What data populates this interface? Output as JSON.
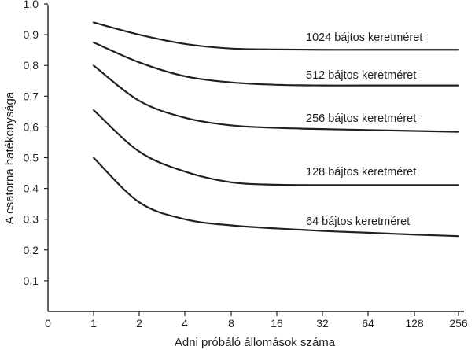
{
  "chart_data": {
    "type": "line",
    "title": "",
    "xlabel": "Adni próbáló állomások száma",
    "ylabel": "A csatorna hatékonysága",
    "x": [
      1,
      2,
      4,
      8,
      16,
      32,
      64,
      128,
      256
    ],
    "x_ticks": [
      "0",
      "1",
      "2",
      "4",
      "8",
      "16",
      "32",
      "64",
      "128",
      "256"
    ],
    "x_scale": "log2",
    "y_ticks": [
      "0,1",
      "0,2",
      "0,3",
      "0,4",
      "0,5",
      "0,6",
      "0,7",
      "0,8",
      "0,9",
      "1,0"
    ],
    "ylim": [
      0,
      1.0
    ],
    "grid": false,
    "series": [
      {
        "name": "1024 bájtos keretméret",
        "values": [
          0.94,
          0.9,
          0.87,
          0.855,
          0.852,
          0.851,
          0.851,
          0.851,
          0.851
        ]
      },
      {
        "name": "512 bájtos keretméret",
        "values": [
          0.875,
          0.81,
          0.765,
          0.745,
          0.737,
          0.735,
          0.735,
          0.735,
          0.735
        ]
      },
      {
        "name": "256 bájtos keretméret",
        "values": [
          0.8,
          0.685,
          0.63,
          0.605,
          0.597,
          0.593,
          0.59,
          0.587,
          0.584
        ]
      },
      {
        "name": "128 bájtos keretméret",
        "values": [
          0.655,
          0.52,
          0.455,
          0.42,
          0.412,
          0.411,
          0.411,
          0.411,
          0.411
        ]
      },
      {
        "name": "64 bájtos keretméret",
        "values": [
          0.5,
          0.355,
          0.3,
          0.28,
          0.27,
          0.262,
          0.256,
          0.25,
          0.245
        ]
      }
    ]
  }
}
